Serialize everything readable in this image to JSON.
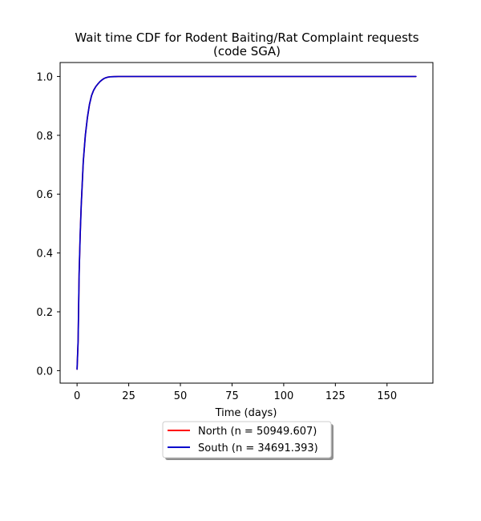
{
  "chart_data": {
    "type": "line",
    "title_lines": [
      "Wait time CDF for Rodent Baiting/Rat Complaint  requests",
      "(code SGA)"
    ],
    "xlabel": "Time (days)",
    "ylabel": "",
    "xlim": [
      -8.2,
      172.2
    ],
    "ylim": [
      -0.0425,
      1.0475
    ],
    "xticks": [
      0,
      25,
      50,
      75,
      100,
      125,
      150
    ],
    "yticks": [
      0.0,
      0.2,
      0.4,
      0.6,
      0.8,
      1.0
    ],
    "ytick_labels": [
      "0.0",
      "0.2",
      "0.4",
      "0.6",
      "0.8",
      "1.0"
    ],
    "grid": false,
    "legend_position": "below-center",
    "series": [
      {
        "name": "North (n = 50949.607)",
        "color": "#ff0000",
        "x": [
          0,
          0.5,
          1,
          1.5,
          2,
          3,
          4,
          5,
          6,
          7,
          8,
          9,
          10,
          11,
          12,
          13,
          14,
          15,
          16,
          18,
          20,
          25,
          30,
          50,
          100,
          164
        ],
        "y": [
          0.005,
          0.1,
          0.33,
          0.46,
          0.56,
          0.71,
          0.8,
          0.86,
          0.905,
          0.935,
          0.953,
          0.965,
          0.974,
          0.982,
          0.988,
          0.993,
          0.996,
          0.998,
          0.999,
          0.9995,
          1.0,
          1.0,
          1.0,
          1.0,
          1.0,
          1.0
        ]
      },
      {
        "name": "South (n = 34691.393)",
        "color": "#0000cc",
        "x": [
          0,
          0.5,
          1,
          1.5,
          2,
          3,
          4,
          5,
          6,
          7,
          8,
          9,
          10,
          11,
          12,
          13,
          14,
          15,
          16,
          18,
          20,
          25,
          30,
          50,
          100,
          164
        ],
        "y": [
          0.005,
          0.1,
          0.33,
          0.46,
          0.56,
          0.71,
          0.8,
          0.86,
          0.905,
          0.935,
          0.953,
          0.965,
          0.974,
          0.982,
          0.988,
          0.993,
          0.996,
          0.998,
          0.999,
          0.9995,
          1.0,
          1.0,
          1.0,
          1.0,
          1.0,
          1.0
        ]
      }
    ]
  }
}
